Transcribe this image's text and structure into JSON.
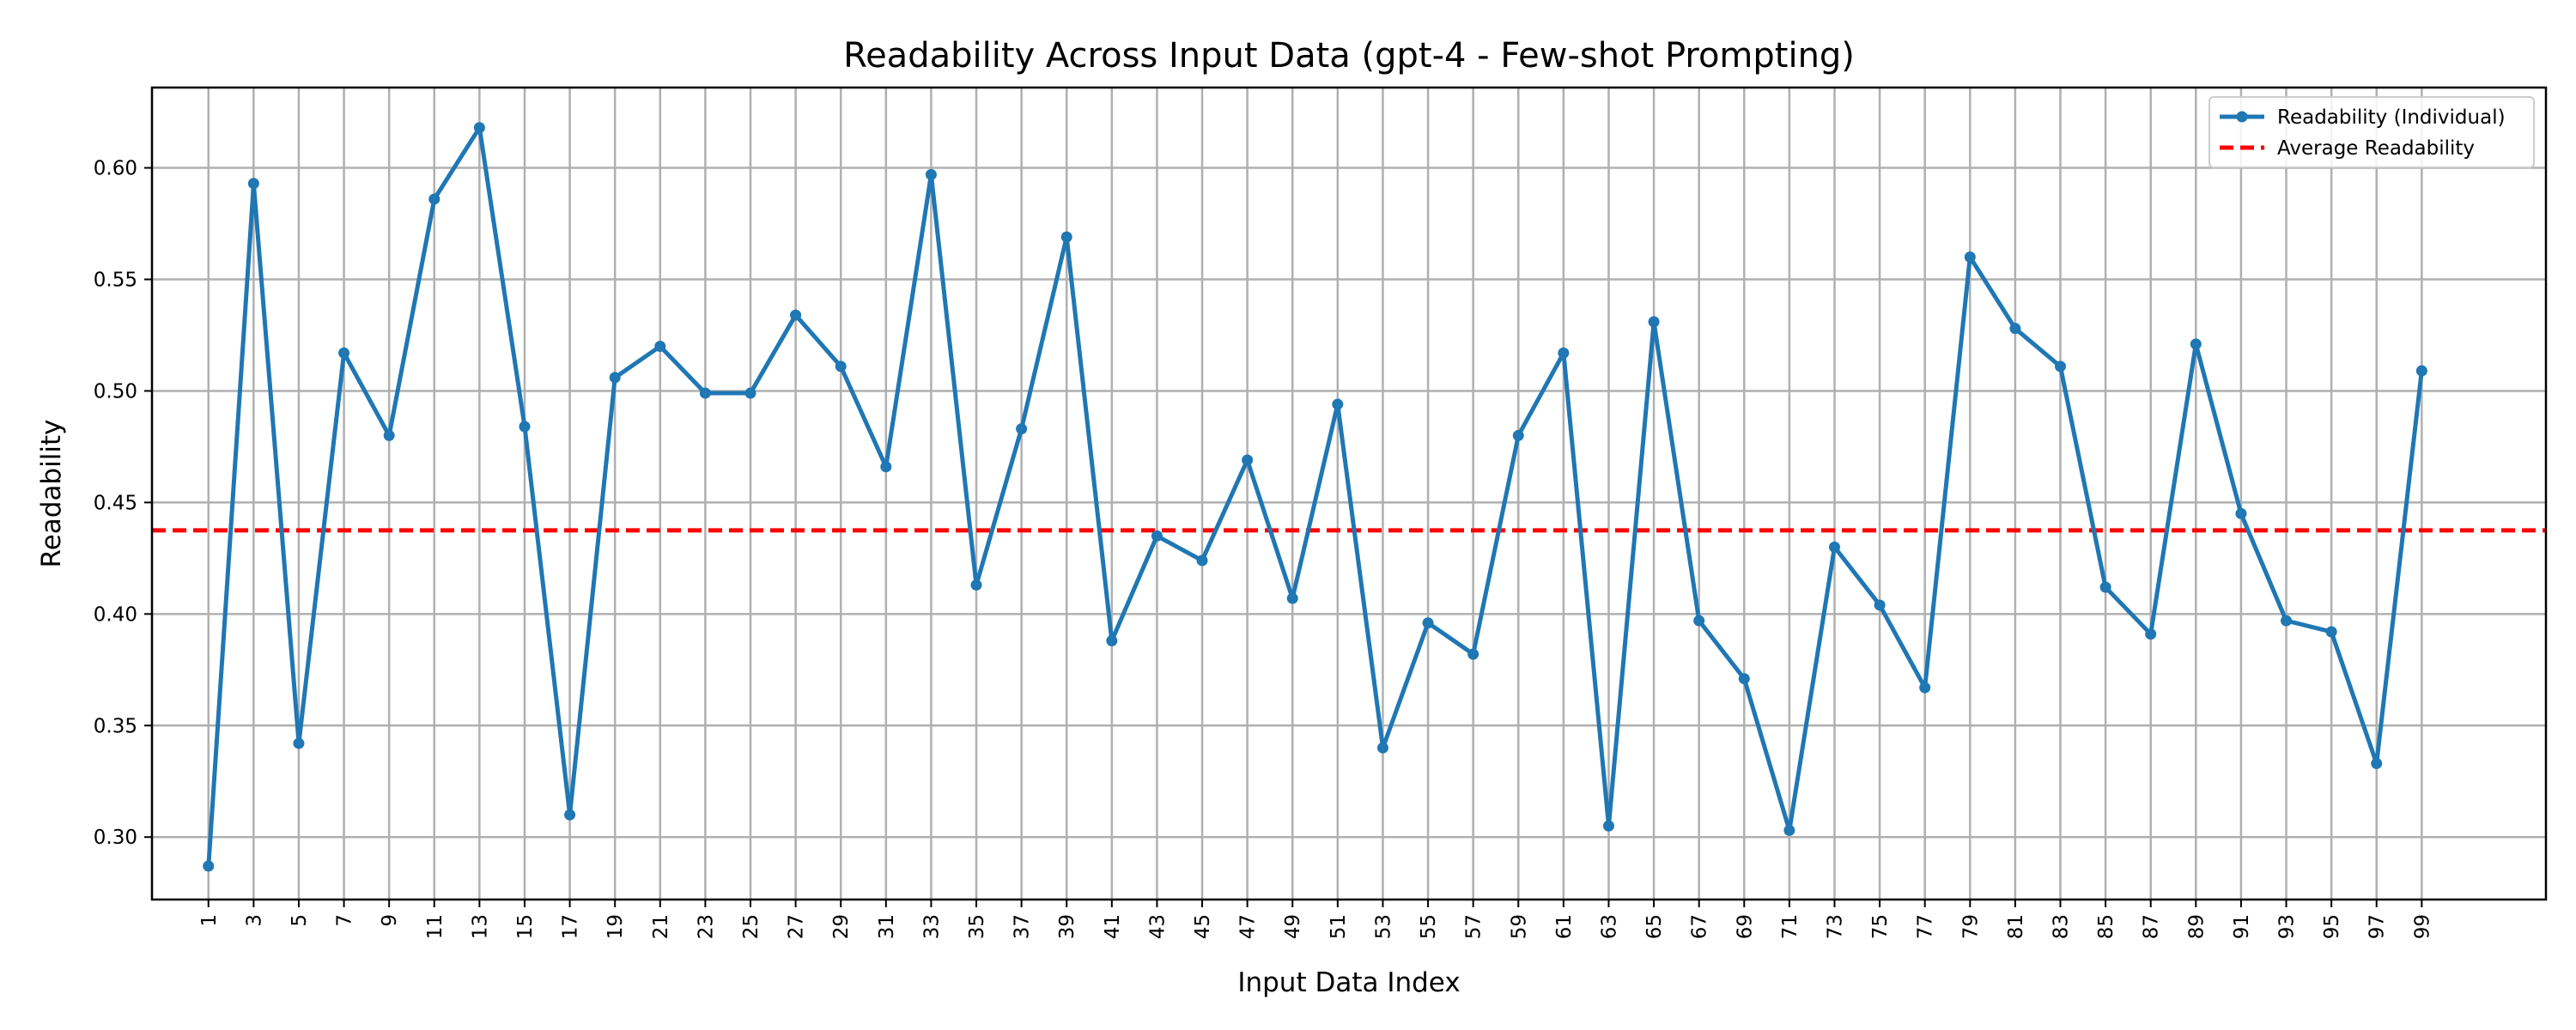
{
  "chart_data": {
    "type": "line",
    "title": "Readability Across Input Data (gpt-4 - Few-shot Prompting)",
    "xlabel": "Input Data Index",
    "ylabel": "Readability",
    "xlim": [
      -1.5,
      104.5
    ],
    "ylim": [
      0.272,
      0.636
    ],
    "x_ticks": [
      1,
      3,
      5,
      7,
      9,
      11,
      13,
      15,
      17,
      19,
      21,
      23,
      25,
      27,
      29,
      31,
      33,
      35,
      37,
      39,
      41,
      43,
      45,
      47,
      49,
      51,
      53,
      55,
      57,
      59,
      61,
      63,
      65,
      67,
      69,
      71,
      73,
      75,
      77,
      79,
      81,
      83,
      85,
      87,
      89,
      91,
      93,
      95,
      97,
      99
    ],
    "y_ticks": [
      "0.30",
      "0.35",
      "0.40",
      "0.45",
      "0.50",
      "0.55",
      "0.60"
    ],
    "grid": true,
    "legend_position": "top-right",
    "average": 0.4375,
    "series": [
      {
        "name": "Readability (Individual)",
        "color": "#1f77b4",
        "marker": "circle",
        "x": [
          1,
          3,
          5,
          7,
          9,
          11,
          13,
          15,
          17,
          19,
          21,
          23,
          25,
          27,
          29,
          31,
          33,
          35,
          37,
          39,
          41,
          43,
          45,
          47,
          49,
          51,
          53,
          55,
          57,
          59,
          61,
          63,
          65,
          67,
          69,
          71,
          73,
          75,
          77,
          79,
          81,
          83,
          85,
          87,
          89,
          91,
          93,
          95,
          97,
          99
        ],
        "y": [
          0.287,
          0.593,
          0.342,
          0.517,
          0.48,
          0.586,
          0.618,
          0.484,
          0.31,
          0.506,
          0.52,
          0.499,
          0.499,
          0.534,
          0.511,
          0.466,
          0.597,
          0.413,
          0.483,
          0.569,
          0.388,
          0.435,
          0.424,
          0.469,
          0.407,
          0.494,
          0.34,
          0.396,
          0.382,
          0.48,
          0.517,
          0.305,
          0.531,
          0.397,
          0.371,
          0.303,
          0.43,
          0.404,
          0.367,
          0.56,
          0.528,
          0.511,
          0.412,
          0.391,
          0.521,
          0.445,
          0.397,
          0.392,
          0.333,
          0.509
        ]
      },
      {
        "name": "Average Readability",
        "color": "#ff0000",
        "style": "dashed"
      }
    ]
  }
}
